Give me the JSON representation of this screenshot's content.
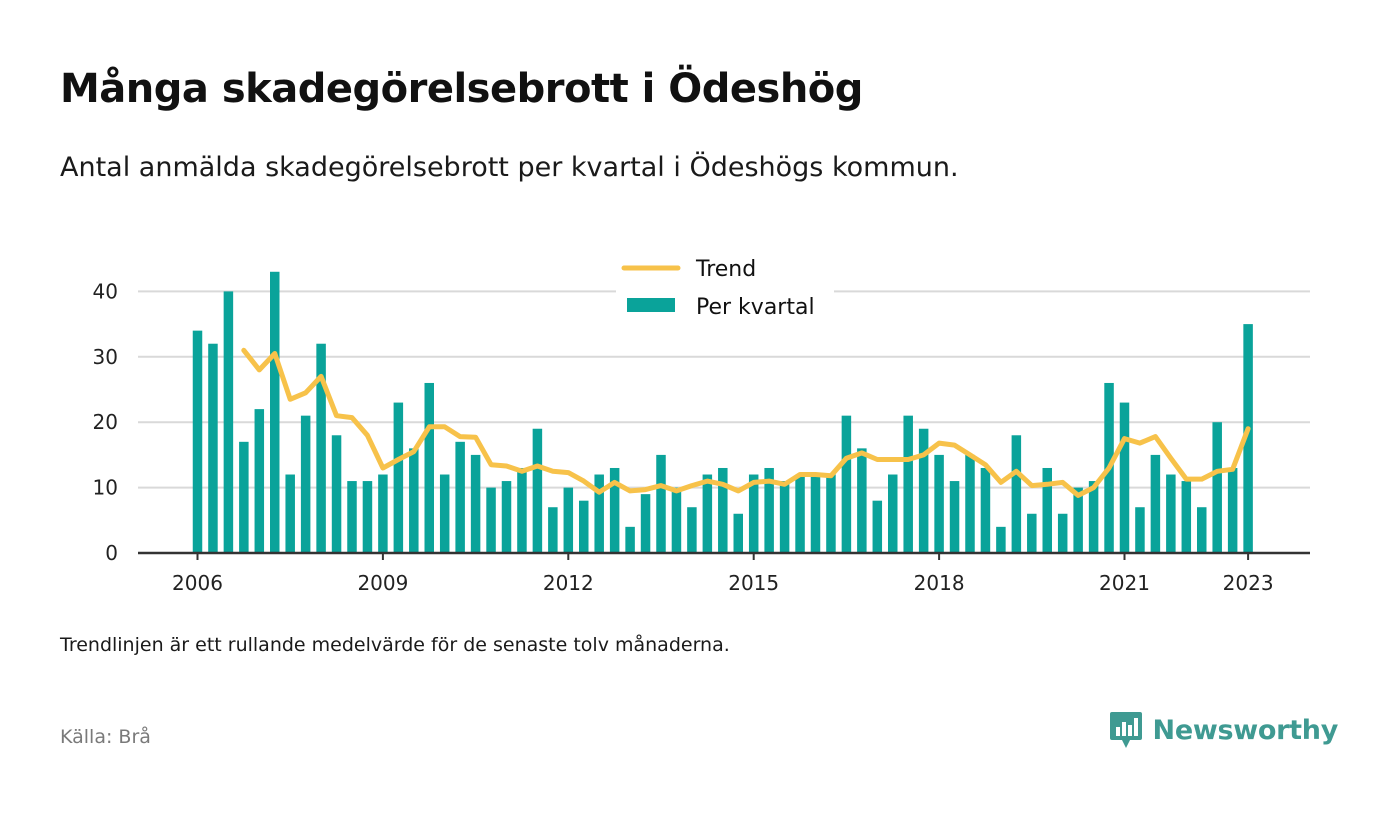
{
  "header": {
    "title": "Många skadegörelsebrott i Ödeshög",
    "subtitle": "Antal anmälda skadegörelsebrott per kvartal i Ödeshögs kommun."
  },
  "footer": {
    "note": "Trendlinjen är ett rullande medelvärde för de senaste tolv månaderna.",
    "source": "Källa: Brå",
    "brand": "Newsworthy"
  },
  "colors": {
    "bar": "#0aa39a",
    "trend": "#f7c24a",
    "grid": "#d9d9d9",
    "axis": "#333333",
    "brand": "#3f9a92"
  },
  "chart_data": {
    "type": "bar",
    "xlabel": "",
    "ylabel": "",
    "ylim": [
      0,
      45
    ],
    "yticks": [
      "0",
      "10",
      "20",
      "30",
      "40"
    ],
    "xtick_labels": [
      "2006",
      "2009",
      "2012",
      "2015",
      "2018",
      "2021",
      "2023"
    ],
    "legend": {
      "placement": "top-center",
      "trend_label": "Trend",
      "bar_label": "Per kvartal"
    },
    "grid": true,
    "start": {
      "year": 2006,
      "quarter": 1
    },
    "series": [
      {
        "name": "Per kvartal",
        "type": "bar",
        "values": [
          34,
          32,
          40,
          17,
          22,
          43,
          12,
          21,
          32,
          18,
          11,
          11,
          12,
          23,
          16,
          26,
          12,
          17,
          15,
          10,
          11,
          13,
          19,
          7,
          10,
          8,
          12,
          13,
          4,
          9,
          15,
          10,
          7,
          12,
          13,
          6,
          12,
          13,
          11,
          12,
          12,
          12,
          21,
          16,
          8,
          12,
          21,
          19,
          15,
          11,
          15,
          13,
          4,
          18,
          6,
          13,
          6,
          10,
          11,
          26,
          23,
          7,
          15,
          12,
          11,
          7,
          20,
          13,
          35
        ]
      },
      {
        "name": "Trend",
        "type": "line",
        "start_index": 3,
        "values": [
          31.0,
          28.0,
          30.5,
          23.5,
          24.5,
          27.0,
          21.0,
          20.7,
          18.0,
          13.0,
          14.3,
          15.5,
          19.3,
          19.3,
          17.8,
          17.7,
          13.5,
          13.3,
          12.5,
          13.3,
          12.5,
          12.3,
          11.0,
          9.3,
          10.8,
          9.5,
          9.7,
          10.3,
          9.5,
          10.3,
          11.0,
          10.5,
          9.5,
          10.8,
          11.0,
          10.5,
          12.0,
          12.0,
          11.8,
          14.5,
          15.3,
          14.3,
          14.3,
          14.3,
          15.0,
          16.8,
          16.5,
          15.0,
          13.5,
          10.8,
          12.5,
          10.3,
          10.5,
          10.8,
          8.8,
          10.0,
          13.0,
          17.5,
          16.8,
          17.8,
          14.5,
          11.3,
          11.3,
          12.5,
          12.8,
          19.0
        ]
      }
    ]
  }
}
